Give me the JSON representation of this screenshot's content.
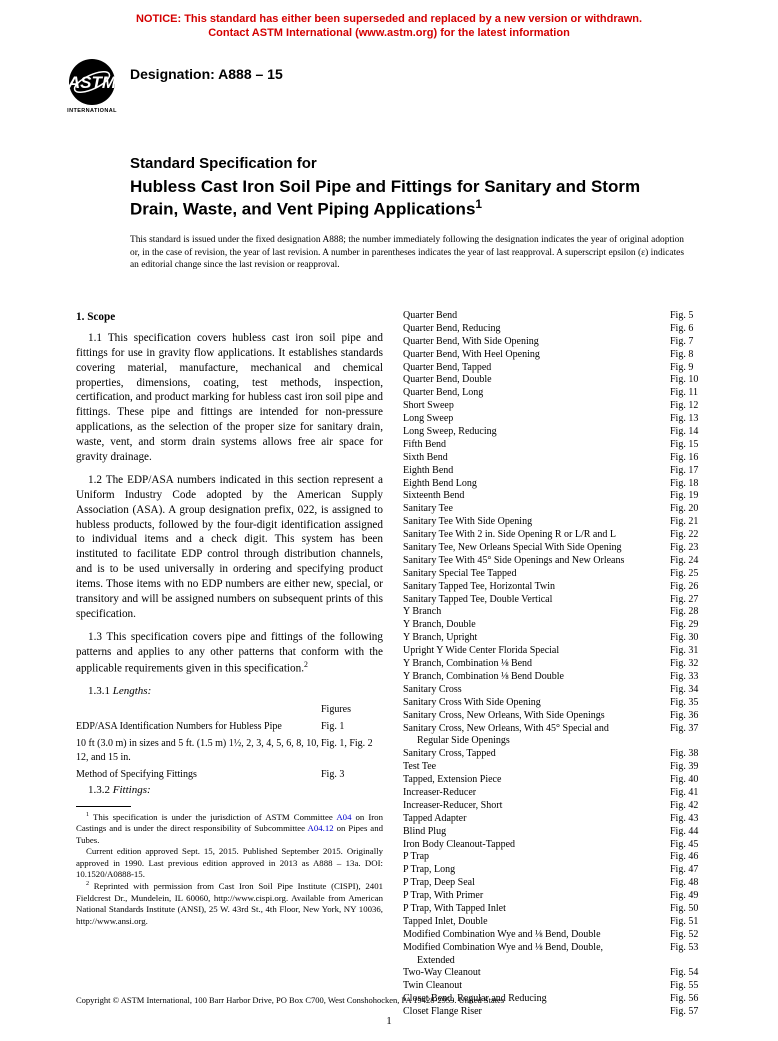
{
  "notice": {
    "line1": "NOTICE: This standard has either been superseded and replaced by a new version or withdrawn.",
    "line2": "Contact ASTM International (www.astm.org) for the latest information"
  },
  "header": {
    "logo_label": "ASTM",
    "logo_sub": "INTERNATIONAL",
    "designation": "Designation: A888 – 15"
  },
  "title": {
    "pretitle": "Standard Specification for",
    "main": "Hubless Cast Iron Soil Pipe and Fittings for Sanitary and Storm Drain, Waste, and Vent Piping Applications",
    "sup": "1"
  },
  "abstract": "This standard is issued under the fixed designation A888; the number immediately following the designation indicates the year of original adoption or, in the case of revision, the year of last revision. A number in parentheses indicates the year of last reapproval. A superscript epsilon (ε) indicates an editorial change since the last revision or reapproval.",
  "scope": {
    "head": "1. Scope",
    "p1": "1.1 This specification covers hubless cast iron soil pipe and fittings for use in gravity flow applications. It establishes standards covering material, manufacture, mechanical and chemical properties, dimensions, coating, test methods, inspection, certification, and product marking for hubless cast iron soil pipe and fittings. These pipe and fittings are intended for non-pressure applications, as the selection of the proper size for sanitary drain, waste, vent, and storm drain systems allows free air space for gravity drainage.",
    "p2": "1.2 The EDP/ASA numbers indicated in this section represent a Uniform Industry Code adopted by the American Supply Association (ASA). A group designation prefix, 022, is assigned to hubless products, followed by the four-digit identification assigned to individual items and a check digit. This system has been instituted to facilitate EDP control through distribution channels, and is to be used universally in ordering and specifying product items. Those items with no EDP numbers are either new, special, or transitory and will be assigned numbers on subsequent prints of this specification.",
    "p3_a": "1.3 This specification covers pipe and fittings of the following patterns and applies to any other patterns that conform with the applicable requirements given in this specification.",
    "p3_sup": "2",
    "lengths_head": "1.3.1 Lengths:",
    "figures_col": "Figures",
    "lengths_t1_name": "EDP/ASA Identification Numbers for Hubless Pipe",
    "lengths_t1_fig": "Fig. 1",
    "lengths_t2_name": "10 ft (3.0 m) in sizes and 5 ft. (1.5 m) 1½, 2, 3, 4, 5, 6, 8, 10, 12, and 15 in.",
    "lengths_t2_fig": "Fig. 1, Fig. 2",
    "lengths_t3_name": "Method of Specifying Fittings",
    "lengths_t3_fig": "Fig. 3",
    "fittings_head": "1.3.2 Fittings:"
  },
  "footnotes": {
    "f1_a": " This specification is under the jurisdiction of ASTM Committee ",
    "f1_link1": "A04",
    "f1_b": " on Iron Castings and is under the direct responsibility of Subcommittee ",
    "f1_link2": "A04.12",
    "f1_c": " on Pipes and Tubes.",
    "f1_d": "Current edition approved Sept. 15, 2015. Published September 2015. Originally approved in 1990. Last previous edition approved in 2013 as A888 – 13a. DOI: 10.1520/A0888-15.",
    "f2": " Reprinted with permission from Cast Iron Soil Pipe Institute (CISPI), 2401 Fieldcrest Dr., Mundelein, IL 60060, http://www.cispi.org. Available from American National Standards Institute (ANSI), 25 W. 43rd St., 4th Floor, New York, NY 10036, http://www.ansi.org."
  },
  "fittings": [
    {
      "n": "Quarter Bend",
      "f": "Fig. 5"
    },
    {
      "n": "Quarter Bend, Reducing",
      "f": "Fig. 6"
    },
    {
      "n": "Quarter Bend, With Side Opening",
      "f": "Fig. 7"
    },
    {
      "n": "Quarter Bend, With Heel Opening",
      "f": "Fig. 8"
    },
    {
      "n": "Quarter Bend, Tapped",
      "f": "Fig. 9"
    },
    {
      "n": "Quarter Bend, Double",
      "f": "Fig. 10"
    },
    {
      "n": "Quarter Bend, Long",
      "f": "Fig. 11"
    },
    {
      "n": "Short Sweep",
      "f": "Fig. 12"
    },
    {
      "n": "Long Sweep",
      "f": "Fig. 13"
    },
    {
      "n": "Long Sweep, Reducing",
      "f": "Fig. 14"
    },
    {
      "n": "Fifth Bend",
      "f": "Fig. 15"
    },
    {
      "n": "Sixth Bend",
      "f": "Fig. 16"
    },
    {
      "n": "Eighth Bend",
      "f": "Fig. 17"
    },
    {
      "n": "Eighth Bend Long",
      "f": "Fig. 18"
    },
    {
      "n": "Sixteenth Bend",
      "f": "Fig. 19"
    },
    {
      "n": "Sanitary Tee",
      "f": "Fig. 20"
    },
    {
      "n": "Sanitary Tee With Side Opening",
      "f": "Fig. 21"
    },
    {
      "n": "Sanitary Tee With 2 in. Side Opening R or L/R and L",
      "f": "Fig. 22"
    },
    {
      "n": "Sanitary Tee, New Orleans Special With Side Opening",
      "f": "Fig. 23"
    },
    {
      "n": "Sanitary Tee With 45° Side Openings and New Orleans",
      "f": "Fig. 24"
    },
    {
      "n": "Sanitary Special Tee Tapped",
      "f": "Fig. 25"
    },
    {
      "n": "Sanitary Tapped Tee, Horizontal Twin",
      "f": "Fig. 26"
    },
    {
      "n": "Sanitary Tapped Tee, Double Vertical",
      "f": "Fig. 27"
    },
    {
      "n": "Y Branch",
      "f": "Fig. 28"
    },
    {
      "n": "Y Branch, Double",
      "f": "Fig. 29"
    },
    {
      "n": "Y Branch, Upright",
      "f": "Fig. 30"
    },
    {
      "n": "Upright Y Wide Center Florida Special",
      "f": "Fig. 31"
    },
    {
      "n": "Y Branch, Combination ⅛ Bend",
      "f": "Fig. 32"
    },
    {
      "n": "Y Branch, Combination ⅛ Bend Double",
      "f": "Fig. 33"
    },
    {
      "n": "Sanitary Cross",
      "f": "Fig. 34"
    },
    {
      "n": "Sanitary Cross With Side Opening",
      "f": "Fig. 35"
    },
    {
      "n": "Sanitary Cross, New Orleans, With Side Openings",
      "f": "Fig. 36"
    },
    {
      "n": "Sanitary Cross, New Orleans, With 45° Special and",
      "f": "Fig. 37",
      "cont": "Regular Side Openings"
    },
    {
      "n": "Sanitary Cross, Tapped",
      "f": "Fig. 38"
    },
    {
      "n": "Test Tee",
      "f": "Fig. 39"
    },
    {
      "n": "Tapped, Extension Piece",
      "f": "Fig. 40"
    },
    {
      "n": "Increaser-Reducer",
      "f": "Fig. 41"
    },
    {
      "n": "Increaser-Reducer, Short",
      "f": "Fig. 42"
    },
    {
      "n": "Tapped Adapter",
      "f": "Fig. 43"
    },
    {
      "n": "Blind Plug",
      "f": "Fig. 44"
    },
    {
      "n": "Iron Body Cleanout-Tapped",
      "f": "Fig. 45"
    },
    {
      "n": "P Trap",
      "f": "Fig. 46"
    },
    {
      "n": "P Trap, Long",
      "f": "Fig. 47"
    },
    {
      "n": "P Trap, Deep Seal",
      "f": "Fig. 48"
    },
    {
      "n": "P Trap, With Primer",
      "f": "Fig. 49"
    },
    {
      "n": "P Trap, With Tapped Inlet",
      "f": "Fig. 50"
    },
    {
      "n": "Tapped Inlet, Double",
      "f": "Fig. 51"
    },
    {
      "n": "Modified Combination Wye and ⅛ Bend, Double",
      "f": "Fig. 52"
    },
    {
      "n": "Modified Combination Wye and ⅛ Bend, Double,",
      "f": "Fig. 53",
      "cont": "Extended"
    },
    {
      "n": "Two-Way Cleanout",
      "f": "Fig. 54"
    },
    {
      "n": "Twin Cleanout",
      "f": "Fig. 55"
    },
    {
      "n": "Closet Bend, Regular and Reducing",
      "f": "Fig. 56"
    },
    {
      "n": "Closet Flange Riser",
      "f": "Fig. 57"
    }
  ],
  "copyright": "Copyright © ASTM International, 100 Barr Harbor Drive, PO Box C700, West Conshohocken, PA 19428-2959. United States",
  "page_num": "1"
}
